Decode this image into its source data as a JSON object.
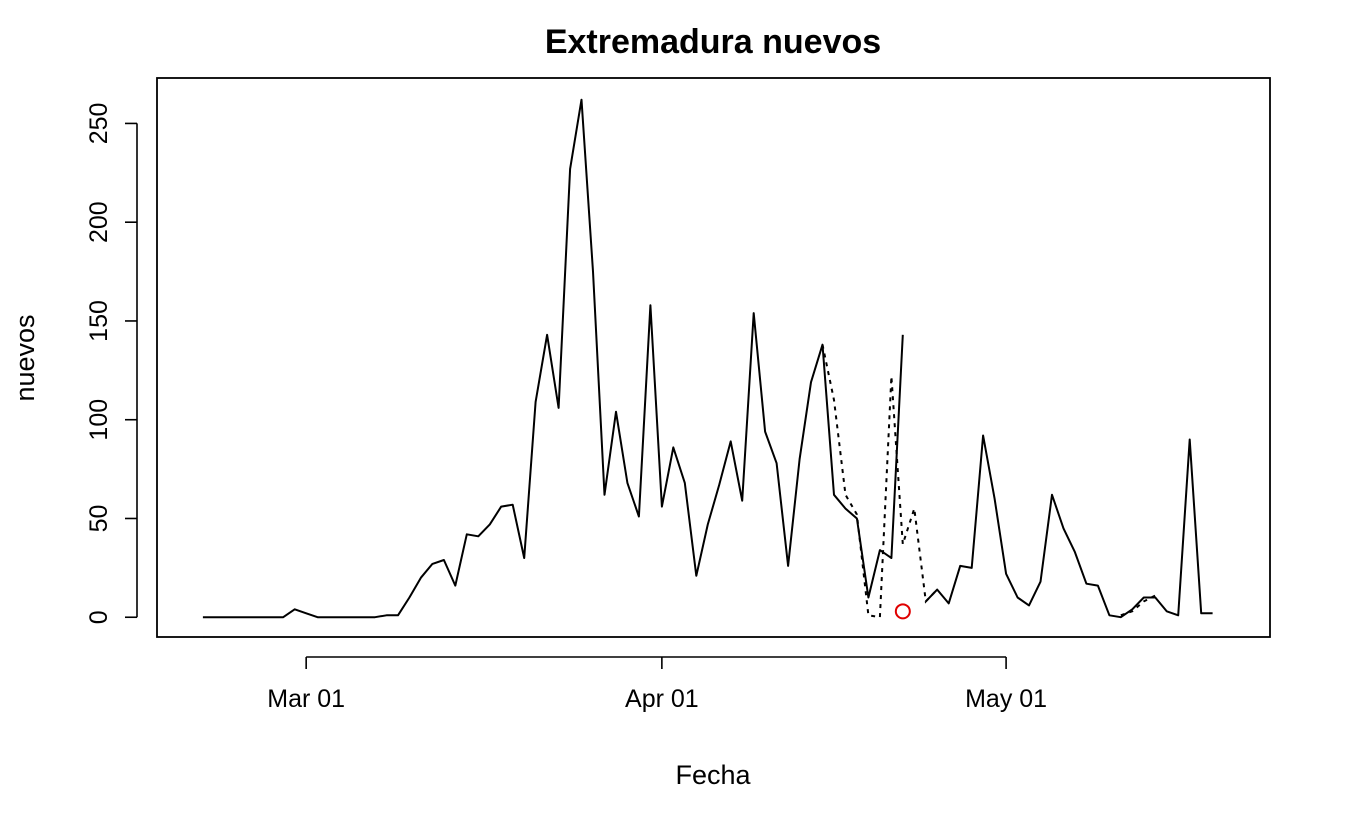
{
  "chart_data": {
    "type": "line",
    "title": "Extremadura nuevos",
    "xlabel": "Fecha",
    "ylabel": "nuevos",
    "xlim": [
      "2020-02-17",
      "2020-05-24"
    ],
    "ylim": [
      -10,
      273
    ],
    "x_ticks": [
      {
        "date": "2020-03-01",
        "label": "Mar 01"
      },
      {
        "date": "2020-04-01",
        "label": "Apr 01"
      },
      {
        "date": "2020-05-01",
        "label": "May 01"
      }
    ],
    "y_ticks": [
      0,
      50,
      100,
      150,
      200,
      250
    ],
    "grid": false,
    "series": [
      {
        "style": "solid",
        "color": "#000000",
        "points": [
          [
            "2020-02-21",
            0
          ],
          [
            "2020-02-22",
            0
          ],
          [
            "2020-02-23",
            0
          ],
          [
            "2020-02-24",
            0
          ],
          [
            "2020-02-25",
            0
          ],
          [
            "2020-02-26",
            0
          ],
          [
            "2020-02-27",
            0
          ],
          [
            "2020-02-28",
            0
          ],
          [
            "2020-02-29",
            4
          ],
          [
            "2020-03-01",
            2
          ],
          [
            "2020-03-02",
            0
          ],
          [
            "2020-03-03",
            0
          ],
          [
            "2020-03-04",
            0
          ],
          [
            "2020-03-05",
            0
          ],
          [
            "2020-03-06",
            0
          ],
          [
            "2020-03-07",
            0
          ],
          [
            "2020-03-08",
            1
          ],
          [
            "2020-03-09",
            1
          ],
          [
            "2020-03-10",
            10
          ],
          [
            "2020-03-11",
            20
          ],
          [
            "2020-03-12",
            27
          ],
          [
            "2020-03-13",
            29
          ],
          [
            "2020-03-14",
            16
          ],
          [
            "2020-03-15",
            42
          ],
          [
            "2020-03-16",
            41
          ],
          [
            "2020-03-17",
            47
          ],
          [
            "2020-03-18",
            56
          ],
          [
            "2020-03-19",
            57
          ],
          [
            "2020-03-20",
            30
          ],
          [
            "2020-03-21",
            109
          ],
          [
            "2020-03-22",
            143
          ],
          [
            "2020-03-23",
            106
          ],
          [
            "2020-03-24",
            227
          ],
          [
            "2020-03-25",
            262
          ],
          [
            "2020-03-26",
            175
          ],
          [
            "2020-03-27",
            62
          ],
          [
            "2020-03-28",
            104
          ],
          [
            "2020-03-29",
            68
          ],
          [
            "2020-03-30",
            51
          ],
          [
            "2020-03-31",
            158
          ],
          [
            "2020-04-01",
            56
          ],
          [
            "2020-04-02",
            86
          ],
          [
            "2020-04-03",
            68
          ],
          [
            "2020-04-04",
            21
          ],
          [
            "2020-04-05",
            47
          ],
          [
            "2020-04-06",
            67
          ],
          [
            "2020-04-07",
            89
          ],
          [
            "2020-04-08",
            59
          ],
          [
            "2020-04-09",
            154
          ],
          [
            "2020-04-10",
            94
          ],
          [
            "2020-04-11",
            78
          ],
          [
            "2020-04-12",
            26
          ],
          [
            "2020-04-13",
            80
          ],
          [
            "2020-04-14",
            119
          ],
          [
            "2020-04-15",
            138
          ],
          [
            "2020-04-16",
            62
          ],
          [
            "2020-04-17",
            55
          ],
          [
            "2020-04-18",
            50
          ],
          [
            "2020-04-19",
            10
          ],
          [
            "2020-04-20",
            34
          ],
          [
            "2020-04-21",
            30
          ],
          [
            "2020-04-22",
            143
          ]
        ]
      },
      {
        "style": "solid",
        "color": "#000000",
        "points": [
          [
            "2020-04-24",
            8
          ],
          [
            "2020-04-25",
            14
          ],
          [
            "2020-04-26",
            7
          ],
          [
            "2020-04-27",
            26
          ],
          [
            "2020-04-28",
            25
          ],
          [
            "2020-04-29",
            92
          ],
          [
            "2020-04-30",
            60
          ],
          [
            "2020-05-01",
            22
          ],
          [
            "2020-05-02",
            10
          ],
          [
            "2020-05-03",
            6
          ],
          [
            "2020-05-04",
            18
          ],
          [
            "2020-05-05",
            62
          ],
          [
            "2020-05-06",
            45
          ],
          [
            "2020-05-07",
            33
          ],
          [
            "2020-05-08",
            17
          ],
          [
            "2020-05-09",
            16
          ],
          [
            "2020-05-10",
            1
          ],
          [
            "2020-05-11",
            0
          ],
          [
            "2020-05-12",
            4
          ],
          [
            "2020-05-13",
            10
          ],
          [
            "2020-05-14",
            10
          ],
          [
            "2020-05-15",
            3
          ],
          [
            "2020-05-16",
            1
          ],
          [
            "2020-05-17",
            90
          ],
          [
            "2020-05-18",
            2
          ],
          [
            "2020-05-19",
            2
          ]
        ]
      },
      {
        "style": "dotted",
        "color": "#000000",
        "points": [
          [
            "2020-04-15",
            138
          ],
          [
            "2020-04-16",
            110
          ],
          [
            "2020-04-17",
            62
          ],
          [
            "2020-04-18",
            52
          ],
          [
            "2020-04-19",
            1
          ],
          [
            "2020-04-20",
            0
          ],
          [
            "2020-04-21",
            122
          ],
          [
            "2020-04-22",
            37
          ],
          [
            "2020-04-23",
            55
          ],
          [
            "2020-04-24",
            8
          ],
          [
            "2020-04-25",
            14
          ]
        ]
      },
      {
        "style": "dotted",
        "color": "#000000",
        "points": [
          [
            "2020-05-11",
            1
          ],
          [
            "2020-05-12",
            3
          ],
          [
            "2020-05-13",
            8
          ],
          [
            "2020-05-14",
            11
          ]
        ]
      }
    ],
    "highlight_point": {
      "date": "2020-04-22",
      "value": 3,
      "color": "#e00000",
      "marker": "open-circle"
    }
  }
}
